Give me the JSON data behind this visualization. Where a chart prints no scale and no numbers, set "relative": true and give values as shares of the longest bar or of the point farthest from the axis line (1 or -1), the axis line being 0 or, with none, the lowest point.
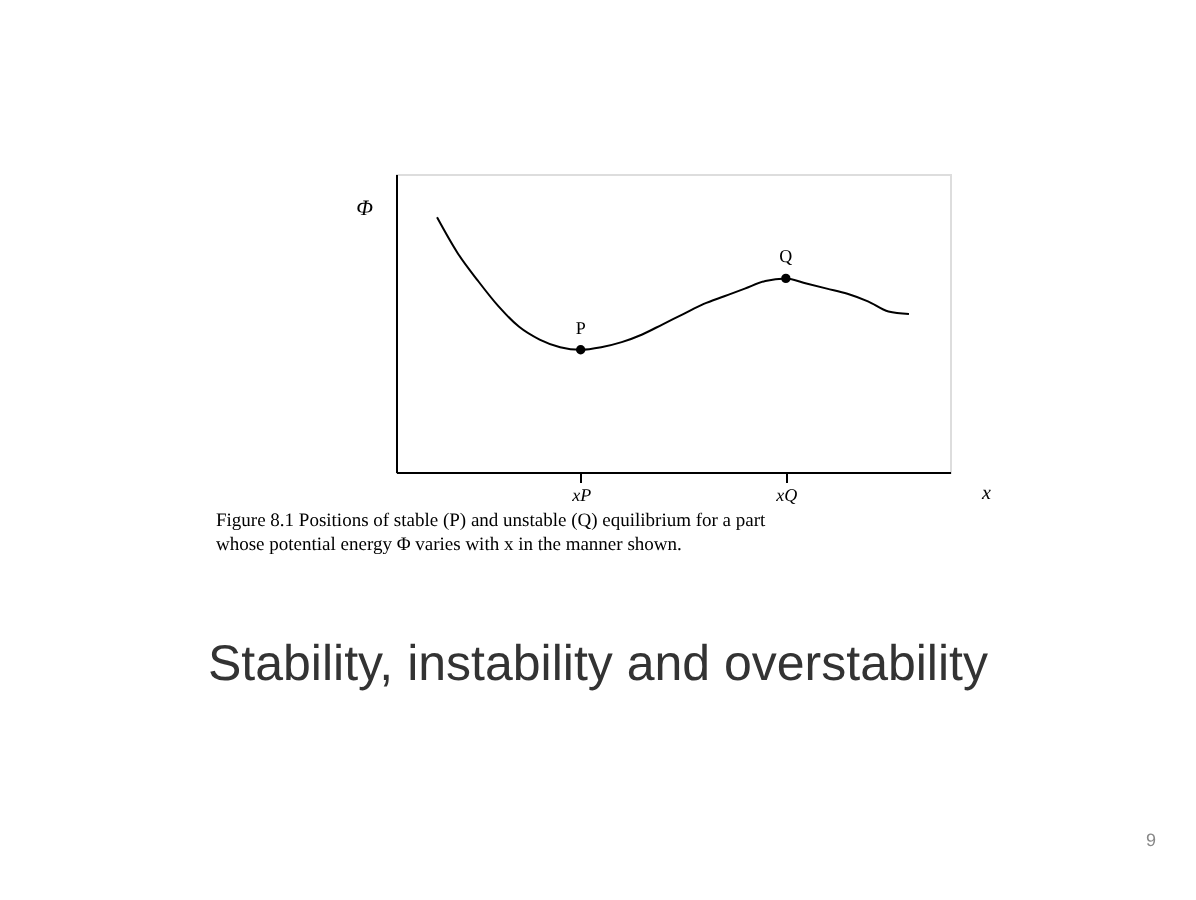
{
  "chart_data": {
    "type": "line",
    "relative": true,
    "title": "Stability, instability and overstability",
    "ylabel": "Φ",
    "xlabel": "x",
    "categories": [
      null,
      null,
      null,
      null,
      null,
      null,
      null,
      null,
      null,
      "xP",
      null,
      null,
      null,
      null,
      null,
      null,
      null,
      null,
      null,
      "xQ",
      null,
      null,
      null,
      null,
      null,
      null,
      null,
      null
    ],
    "series": [
      {
        "color": "#000000",
        "values": [
          null,
          null,
          1.0,
          0.86,
          0.75,
          0.65,
          0.57,
          0.52,
          0.49,
          0.48,
          0.49,
          0.51,
          0.54,
          0.58,
          0.62,
          0.66,
          0.69,
          0.72,
          0.75,
          0.76,
          0.74,
          0.72,
          0.7,
          0.67,
          0.63,
          0.62,
          null,
          null
        ]
      },
      {
        "type": "scatter",
        "color": "#000000",
        "x": [
          "xP",
          "xQ"
        ],
        "values": [
          0.48,
          0.76
        ]
      }
    ],
    "annotations": [
      {
        "text": "P",
        "x": "xP",
        "y": 0.48
      },
      {
        "text": "Q",
        "x": "xQ",
        "y": 0.76
      },
      "Figure 8.1    Positions of stable (P) and unstable (Q) equilibrium for a part",
      "whose potential energy Φ varies with x in the manner shown.",
      "9"
    ],
    "grid": false
  }
}
